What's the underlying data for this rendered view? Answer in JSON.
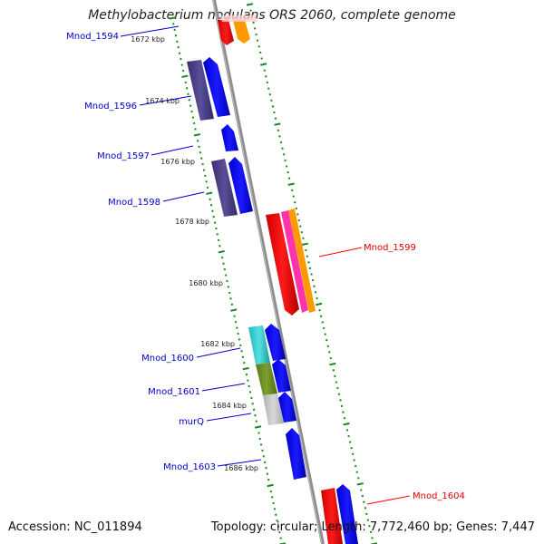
{
  "header": {
    "title": "Methylobacterium nodulans ORS 2060, complete genome"
  },
  "footer": {
    "accession": "Accession: NC_011894",
    "stats": "Topology: circular; Length: 7,772,460 bp; Genes: 7,447"
  },
  "scale": {
    "ticks": [
      "1672 kbp",
      "1674 kbp",
      "1676 kbp",
      "1678 kbp",
      "1680 kbp",
      "1682 kbp",
      "1684 kbp",
      "1686 kbp"
    ]
  },
  "genes": {
    "labels": [
      "Mnod_1594",
      "Mnod_1596",
      "Mnod_1597",
      "Mnod_1598",
      "Mnod_1599",
      "Mnod_1600",
      "Mnod_1601",
      "murQ",
      "Mnod_1603",
      "Mnod_1604"
    ],
    "colors": {
      "forward_strand": "#0000ff",
      "reverse_strand": "#ff0000",
      "backbone": "#8c8c8c",
      "tick": "#1a8a1a",
      "orange": "#ff9900",
      "magenta": "#ff33aa",
      "dark_blue": "#4a3f8a",
      "cyan": "#33cccc",
      "olive": "#6b8e23",
      "grey": "#c0c0c0"
    }
  }
}
